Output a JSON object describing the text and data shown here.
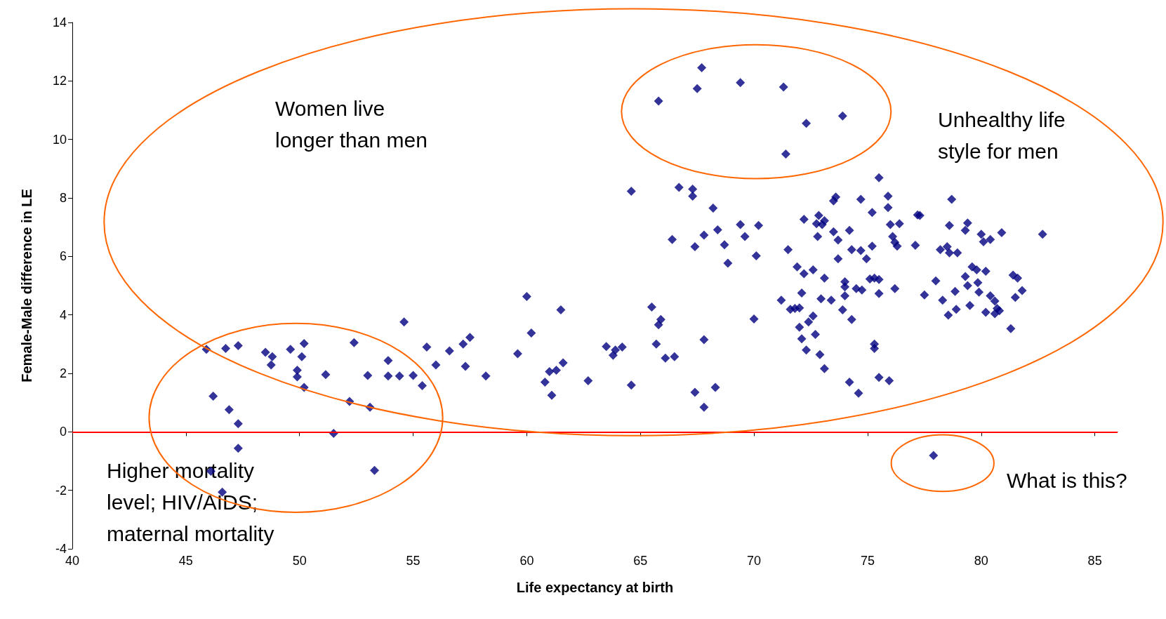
{
  "chart_data": {
    "type": "scatter",
    "xlabel": "Life expectancy at birth",
    "ylabel": "Female-Male difference in LE",
    "xlim": [
      40,
      86
    ],
    "xticks": [
      40,
      45,
      50,
      55,
      60,
      65,
      70,
      75,
      80,
      85
    ],
    "ylim": [
      -4,
      14
    ],
    "yticks": [
      -4,
      -2,
      0,
      2,
      4,
      6,
      8,
      10,
      12,
      14
    ],
    "grid": false,
    "marker": "diamond",
    "ref_lines": [
      {
        "axis": "y",
        "value": 0,
        "color": "#ff0000"
      }
    ],
    "annotations": [
      "Women live\nlonger than men",
      "Unhealthy life\nstyle for men",
      "Higher mortality\nlevel; HIV/AIDS;\nmaternal mortality",
      "What is this?"
    ],
    "series": [
      {
        "color": "#000080",
        "x": [
          45.9,
          46.2,
          46.75,
          46.9,
          47.3,
          47.3,
          47.3,
          46.1,
          46.6,
          48.5,
          48.8,
          48.75,
          49.6,
          49.9,
          49.9,
          50.1,
          50.2,
          50.2,
          51.15,
          51.5,
          52.2,
          52.4,
          53.1,
          53.0,
          53.3,
          53.9,
          53.9,
          54.4,
          54.6,
          55.0,
          55.4,
          55.6,
          56.0,
          56.6,
          57.2,
          57.3,
          57.5,
          58.2,
          59.6,
          60.0,
          60.2,
          60.8,
          61.0,
          61.1,
          61.3,
          61.5,
          61.6,
          62.7,
          63.5,
          63.8,
          63.9,
          64.2,
          64.6,
          64.6,
          65.5,
          65.7,
          65.8,
          65.9,
          65.8,
          66.1,
          66.5,
          66.4,
          66.7,
          67.3,
          67.3,
          67.4,
          67.4,
          67.5,
          67.7,
          67.8,
          67.8,
          67.8,
          68.2,
          68.3,
          68.4,
          68.7,
          68.85,
          69.4,
          69.4,
          69.6,
          70.0,
          70.1,
          70.2,
          71.2,
          71.3,
          71.4,
          71.5,
          71.6,
          71.8,
          71.9,
          72.0,
          72.0,
          72.1,
          72.1,
          72.2,
          72.2,
          72.3,
          72.3,
          72.4,
          72.6,
          72.6,
          72.7,
          72.75,
          72.8,
          72.85,
          72.9,
          72.95,
          73.0,
          73.1,
          73.1,
          73.1,
          73.4,
          73.5,
          73.6,
          73.5,
          73.7,
          73.7,
          73.9,
          74.0,
          74.0,
          74.0,
          73.9,
          74.2,
          74.3,
          74.3,
          74.2,
          74.5,
          74.6,
          74.7,
          74.7,
          74.75,
          74.95,
          75.1,
          75.2,
          75.2,
          75.3,
          75.3,
          75.3,
          75.5,
          75.5,
          75.5,
          75.5,
          75.95,
          75.9,
          75.9,
          76.0,
          76.1,
          76.2,
          76.3,
          76.4,
          76.2,
          77.1,
          77.2,
          77.3,
          77.5,
          77.9,
          78.0,
          78.2,
          78.3,
          78.5,
          78.55,
          78.6,
          78.7,
          78.6,
          78.85,
          78.95,
          78.9,
          79.3,
          79.4,
          79.5,
          79.4,
          79.3,
          79.6,
          79.8,
          79.85,
          79.9,
          80.0,
          80.1,
          80.2,
          80.2,
          80.4,
          80.4,
          80.6,
          80.7,
          80.6,
          80.8,
          80.9,
          81.3,
          81.4,
          81.5,
          81.6,
          81.8,
          82.7
        ],
        "values": [
          2.82,
          1.22,
          2.85,
          0.76,
          2.95,
          0.28,
          -0.56,
          -1.35,
          -2.06,
          2.72,
          2.57,
          2.29,
          2.82,
          2.11,
          1.88,
          2.57,
          3.02,
          1.52,
          1.96,
          -0.05,
          1.04,
          3.05,
          0.84,
          1.93,
          -1.32,
          2.44,
          1.91,
          1.91,
          3.76,
          1.93,
          1.58,
          2.9,
          2.29,
          2.77,
          3.0,
          2.24,
          3.23,
          1.91,
          2.67,
          4.63,
          3.38,
          1.7,
          2.06,
          1.25,
          2.11,
          4.17,
          2.36,
          1.75,
          2.92,
          2.62,
          2.8,
          2.9,
          8.23,
          1.6,
          4.27,
          3.0,
          3.66,
          3.84,
          11.31,
          2.52,
          2.57,
          6.58,
          8.36,
          8.3,
          8.06,
          6.33,
          1.35,
          11.74,
          12.45,
          6.73,
          3.15,
          0.84,
          7.65,
          1.52,
          6.91,
          6.4,
          5.77,
          7.09,
          11.94,
          6.68,
          3.86,
          6.02,
          7.06,
          4.5,
          11.79,
          9.5,
          6.23,
          4.19,
          4.22,
          5.64,
          4.24,
          3.58,
          4.75,
          3.18,
          7.27,
          5.41,
          2.8,
          10.55,
          3.76,
          3.96,
          5.54,
          3.33,
          7.12,
          6.68,
          7.4,
          2.64,
          4.55,
          7.09,
          7.22,
          5.26,
          2.16,
          4.5,
          7.9,
          8.03,
          6.84,
          6.56,
          5.92,
          10.8,
          5.13,
          4.96,
          4.65,
          4.17,
          6.89,
          6.23,
          3.84,
          1.7,
          4.9,
          1.32,
          7.95,
          6.2,
          4.85,
          5.92,
          5.23,
          7.5,
          6.35,
          5.26,
          3.0,
          2.85,
          8.69,
          4.73,
          5.21,
          1.86,
          1.75,
          8.06,
          7.67,
          7.09,
          6.68,
          6.48,
          6.35,
          7.12,
          4.9,
          6.38,
          7.42,
          7.4,
          4.68,
          -0.81,
          5.16,
          6.23,
          4.5,
          6.33,
          3.99,
          7.06,
          7.95,
          6.12,
          4.8,
          6.12,
          4.19,
          5.31,
          5.0,
          4.32,
          7.14,
          6.89,
          5.64,
          5.54,
          5.1,
          4.78,
          6.76,
          6.5,
          5.49,
          4.09,
          6.58,
          4.65,
          4.47,
          4.22,
          4.04,
          4.14,
          6.81,
          3.53,
          5.36,
          4.6,
          5.26,
          4.83,
          6.76
        ]
      }
    ]
  }
}
